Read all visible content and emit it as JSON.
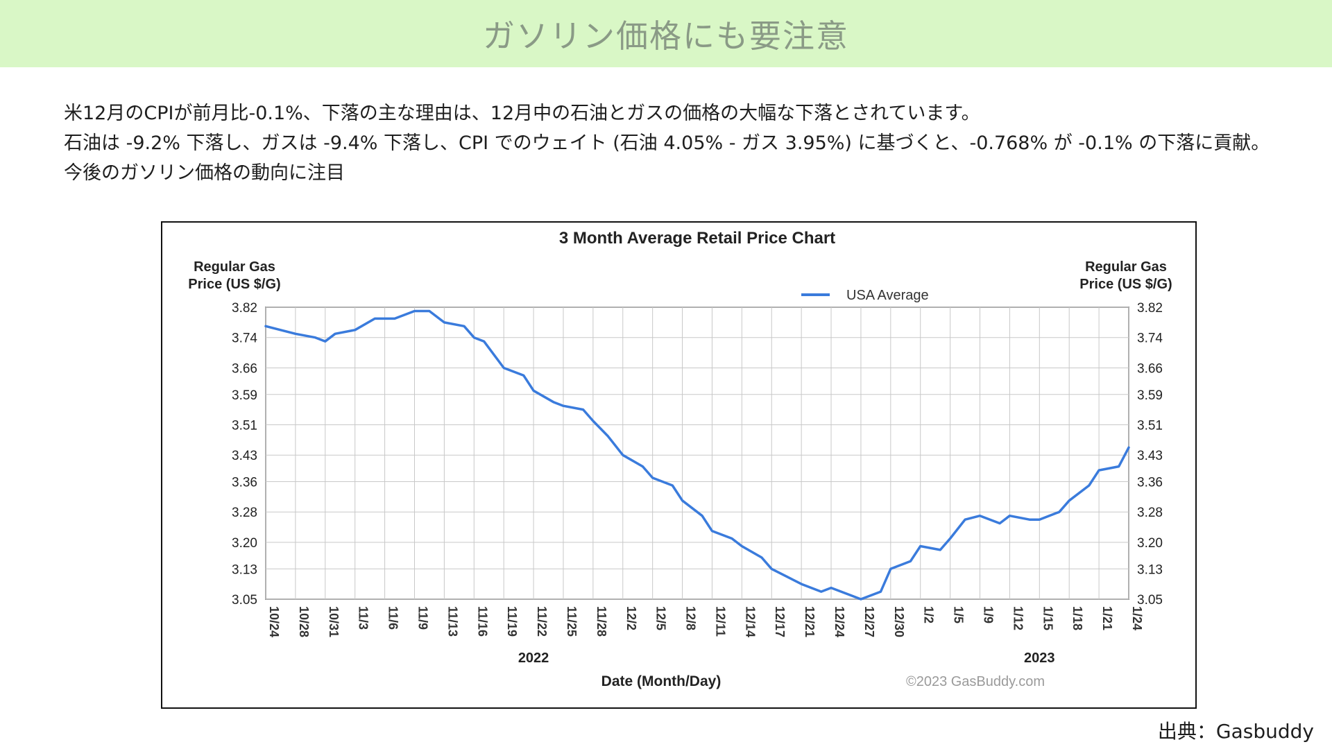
{
  "header": {
    "title": "ガソリン価格にも要注意"
  },
  "body": {
    "lines": [
      "米12月のCPIが前月比-0.1%、下落の主な理由は、12月中の石油とガスの価格の大幅な下落とされています。",
      "石油は -9.2% 下落し、ガスは -9.4% 下落し、CPI でのウェイト (石油 4.05% - ガス 3.95%) に基づくと、-0.768% が -0.1% の下落に貢献。",
      "今後のガソリン価格の動向に注目"
    ]
  },
  "source": "出典：Gasbuddy",
  "colors": {
    "banner": "#d9f7c6",
    "series": "#3a7bdc"
  },
  "chart_data": {
    "type": "line",
    "title": "3 Month Average Retail Price Chart",
    "ylabel_left": [
      "Regular Gas",
      "Price (US $/G)"
    ],
    "ylabel_right": [
      "Regular Gas",
      "Price (US $/G)"
    ],
    "xlabel": "Date (Month/Day)",
    "legend": "USA Average",
    "legend_position": "top-right",
    "grid": true,
    "watermark": "©2023 GasBuddy.com",
    "year_labels": [
      {
        "label": "2022",
        "at": "11/22"
      },
      {
        "label": "2023",
        "at": "1/15"
      }
    ],
    "yticks": [
      "3.05",
      "3.13",
      "3.20",
      "3.28",
      "3.36",
      "3.43",
      "3.51",
      "3.59",
      "3.66",
      "3.74",
      "3.82"
    ],
    "ylim": [
      3.05,
      3.82
    ],
    "xticks": [
      "10/24",
      "10/28",
      "10/31",
      "11/3",
      "11/6",
      "11/9",
      "11/13",
      "11/16",
      "11/19",
      "11/22",
      "11/25",
      "11/28",
      "12/2",
      "12/5",
      "12/8",
      "12/11",
      "12/14",
      "12/17",
      "12/21",
      "12/24",
      "12/27",
      "12/30",
      "1/2",
      "1/5",
      "1/9",
      "1/12",
      "1/15",
      "1/18",
      "1/21",
      "1/24"
    ],
    "series": [
      {
        "name": "USA Average",
        "x": [
          "10/24",
          "10/26",
          "10/28",
          "10/30",
          "10/31",
          "11/1",
          "11/3",
          "11/5",
          "11/6",
          "11/7",
          "11/9",
          "11/11",
          "11/13",
          "11/15",
          "11/16",
          "11/17",
          "11/19",
          "11/21",
          "11/22",
          "11/24",
          "11/25",
          "11/27",
          "11/28",
          "11/30",
          "12/2",
          "12/4",
          "12/5",
          "12/7",
          "12/8",
          "12/10",
          "12/11",
          "12/13",
          "12/14",
          "12/16",
          "12/17",
          "12/19",
          "12/21",
          "12/23",
          "12/24",
          "12/26",
          "12/27",
          "12/29",
          "12/30",
          "1/1",
          "1/2",
          "1/4",
          "1/5",
          "1/7",
          "1/9",
          "1/11",
          "1/12",
          "1/14",
          "1/15",
          "1/17",
          "1/18",
          "1/20",
          "1/21",
          "1/23",
          "1/24"
        ],
        "y": [
          3.77,
          3.76,
          3.75,
          3.74,
          3.73,
          3.75,
          3.76,
          3.79,
          3.79,
          3.79,
          3.81,
          3.81,
          3.78,
          3.77,
          3.74,
          3.73,
          3.66,
          3.64,
          3.6,
          3.57,
          3.56,
          3.55,
          3.52,
          3.48,
          3.43,
          3.4,
          3.37,
          3.35,
          3.31,
          3.27,
          3.23,
          3.21,
          3.19,
          3.16,
          3.13,
          3.11,
          3.09,
          3.07,
          3.08,
          3.06,
          3.05,
          3.07,
          3.13,
          3.15,
          3.19,
          3.18,
          3.21,
          3.26,
          3.27,
          3.25,
          3.27,
          3.26,
          3.26,
          3.28,
          3.31,
          3.35,
          3.39,
          3.4,
          3.45
        ]
      }
    ]
  }
}
